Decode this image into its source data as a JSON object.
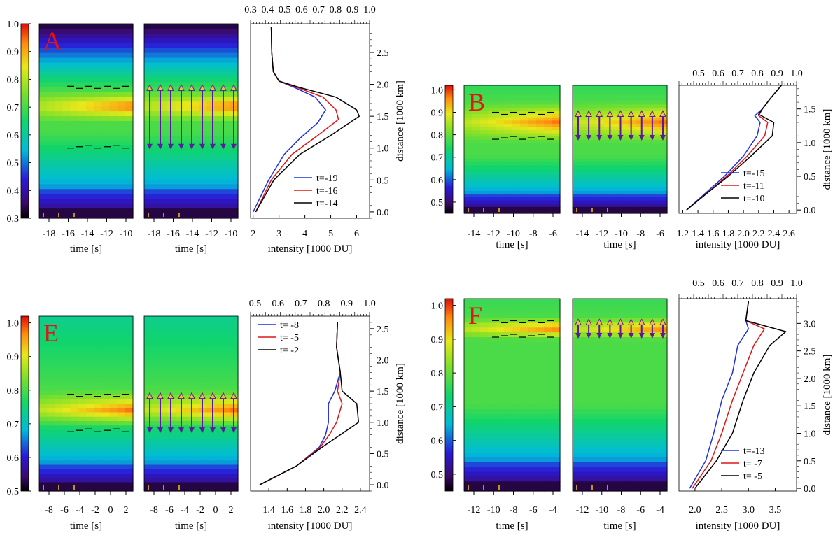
{
  "figure": {
    "common": {
      "time_label": "time [s]",
      "intensity_label": "intensity [1000 DU]",
      "distance_label": "distance [1000 km]"
    },
    "colors": {
      "blue": "#1f2fe0",
      "red": "#e01515",
      "black": "#000000",
      "panel_letter": "#e01515",
      "arrow_up": "#f0c040",
      "arrow_down": "#5a1aa0"
    }
  },
  "chart_data": [
    {
      "panel": "A",
      "type": "line",
      "colorbar_ticks": [
        "1.0",
        "0.9",
        "0.8",
        "0.7",
        "0.6",
        "0.5",
        "0.4",
        "0.3"
      ],
      "colorbar_range": [
        0.3,
        1.0
      ],
      "time_ticks": [
        "-18",
        "-16",
        "-14",
        "-12",
        "-10"
      ],
      "top_axis_ticks": [
        "0.3",
        "0.4",
        "0.5",
        "0.6",
        "0.7",
        "0.8",
        "0.9",
        "1.0"
      ],
      "top_axis_range": [
        0.3,
        1.0
      ],
      "intensity_ticks": [
        "2",
        "3",
        "4",
        "5",
        "6"
      ],
      "intensity_range": [
        1.9,
        6.5
      ],
      "distance_ticks": [
        "0.0",
        "0.5",
        "1.0",
        "1.5",
        "2.0",
        "2.5"
      ],
      "distance_range": [
        -0.1,
        2.95
      ],
      "bright_band_center": 1.65,
      "bright_band_half_width": 0.25,
      "upper_boundary": 1.97,
      "lower_boundary": 1.0,
      "arrow_count": 9,
      "series": [
        {
          "name": "t=-19",
          "color": "#1f2fe0",
          "x": [
            2.7,
            2.72,
            2.78,
            3.0,
            3.6,
            4.4,
            4.8,
            4.5,
            3.8,
            3.2,
            2.6,
            2.0
          ],
          "y": [
            2.9,
            2.5,
            2.2,
            2.05,
            1.95,
            1.8,
            1.6,
            1.4,
            1.15,
            0.9,
            0.5,
            0.0
          ]
        },
        {
          "name": "t=-16",
          "color": "#e01515",
          "x": [
            2.7,
            2.72,
            2.78,
            3.0,
            3.7,
            4.7,
            5.2,
            5.3,
            4.5,
            3.5,
            2.7,
            2.1
          ],
          "y": [
            2.9,
            2.5,
            2.2,
            2.05,
            1.95,
            1.8,
            1.6,
            1.45,
            1.2,
            0.9,
            0.5,
            0.0
          ]
        },
        {
          "name": "t=-14",
          "color": "#000000",
          "x": [
            2.7,
            2.72,
            2.78,
            3.0,
            3.8,
            5.2,
            6.0,
            6.1,
            5.0,
            3.8,
            2.8,
            2.1
          ],
          "y": [
            2.9,
            2.5,
            2.2,
            2.05,
            1.95,
            1.8,
            1.6,
            1.5,
            1.2,
            0.9,
            0.5,
            0.0
          ]
        }
      ]
    },
    {
      "panel": "B",
      "type": "line",
      "colorbar_ticks": [
        "1.0",
        "0.9",
        "0.8",
        "0.7",
        "0.6",
        "0.5"
      ],
      "colorbar_range": [
        0.45,
        1.02
      ],
      "time_ticks": [
        "-14",
        "-12",
        "-10",
        "-8",
        "-6"
      ],
      "top_axis_ticks": [
        "0.5",
        "0.6",
        "0.7",
        "0.8",
        "0.9",
        "1.0"
      ],
      "top_axis_range": [
        0.4,
        1.0
      ],
      "intensity_ticks": [
        "1.2",
        "1.4",
        "1.6",
        "1.8",
        "2.0",
        "2.2",
        "2.4",
        "2.6"
      ],
      "intensity_range": [
        1.15,
        2.7
      ],
      "distance_ticks": [
        "0.0",
        "0.5",
        "1.0",
        "1.5"
      ],
      "distance_range": [
        -0.05,
        1.85
      ],
      "bright_band_center": 1.3,
      "bright_band_half_width": 0.3,
      "upper_boundary": 1.45,
      "lower_boundary": 1.05,
      "arrow_count": 9,
      "series": [
        {
          "name": "t=-15",
          "color": "#1f2fe0",
          "x": [
            2.5,
            2.35,
            2.25,
            2.15,
            2.22,
            2.18,
            2.0,
            1.75,
            1.5,
            1.25
          ],
          "y": [
            1.85,
            1.65,
            1.5,
            1.4,
            1.3,
            1.1,
            0.8,
            0.5,
            0.25,
            0.0
          ]
        },
        {
          "name": "t=-11",
          "color": "#e01515",
          "x": [
            2.5,
            2.35,
            2.25,
            2.2,
            2.32,
            2.28,
            2.05,
            1.78,
            1.52,
            1.25
          ],
          "y": [
            1.85,
            1.65,
            1.5,
            1.4,
            1.3,
            1.1,
            0.8,
            0.5,
            0.25,
            0.0
          ]
        },
        {
          "name": "t=-10",
          "color": "#000000",
          "x": [
            2.5,
            2.35,
            2.25,
            2.2,
            2.4,
            2.38,
            2.1,
            1.8,
            1.52,
            1.25
          ],
          "y": [
            1.85,
            1.65,
            1.5,
            1.42,
            1.3,
            1.1,
            0.8,
            0.5,
            0.25,
            0.0
          ]
        }
      ]
    },
    {
      "panel": "E",
      "type": "line",
      "colorbar_ticks": [
        "1.0",
        "0.9",
        "0.8",
        "0.7",
        "0.6",
        "0.5"
      ],
      "colorbar_range": [
        0.5,
        1.02
      ],
      "time_ticks": [
        "-8",
        "-6",
        "-4",
        "-2",
        "0",
        "2"
      ],
      "top_axis_ticks": [
        "0.5",
        "0.6",
        "0.7",
        "0.8",
        "0.9",
        "1.0"
      ],
      "top_axis_range": [
        0.48,
        1.0
      ],
      "intensity_ticks": [
        "1.4",
        "1.6",
        "1.8",
        "2.0",
        "2.2",
        "2.4"
      ],
      "intensity_range": [
        1.2,
        2.5
      ],
      "distance_ticks": [
        "0.0",
        "0.5",
        "1.0",
        "1.5",
        "2.0",
        "2.5"
      ],
      "distance_range": [
        -0.1,
        2.7
      ],
      "bright_band_center": 1.2,
      "bright_band_half_width": 0.3,
      "upper_boundary": 1.45,
      "lower_boundary": 0.85,
      "arrow_count": 9,
      "series": [
        {
          "name": "t= -8",
          "color": "#1f2fe0",
          "x": [
            2.15,
            2.14,
            2.18,
            2.12,
            2.05,
            2.05,
            2.02,
            1.95,
            1.7,
            1.3
          ],
          "y": [
            2.6,
            2.2,
            1.8,
            1.5,
            1.3,
            1.0,
            0.8,
            0.6,
            0.3,
            0.0
          ]
        },
        {
          "name": "t= -5",
          "color": "#e01515",
          "x": [
            2.15,
            2.14,
            2.18,
            2.15,
            2.2,
            2.14,
            2.06,
            1.96,
            1.7,
            1.3
          ],
          "y": [
            2.6,
            2.2,
            1.8,
            1.5,
            1.3,
            1.0,
            0.8,
            0.6,
            0.3,
            0.0
          ]
        },
        {
          "name": "t= -2",
          "color": "#000000",
          "x": [
            2.15,
            2.14,
            2.18,
            2.2,
            2.36,
            2.38,
            2.18,
            1.98,
            1.7,
            1.3
          ],
          "y": [
            2.6,
            2.2,
            1.8,
            1.5,
            1.3,
            1.0,
            0.8,
            0.6,
            0.3,
            0.0
          ]
        }
      ]
    },
    {
      "panel": "F",
      "type": "line",
      "colorbar_ticks": [
        "1.0",
        "0.9",
        "0.8",
        "0.7",
        "0.6",
        "0.5"
      ],
      "colorbar_range": [
        0.45,
        1.02
      ],
      "time_ticks": [
        "-12",
        "-10",
        "-8",
        "-6",
        "-4"
      ],
      "top_axis_ticks": [
        "0.5",
        "0.6",
        "0.7",
        "0.8",
        "0.9",
        "1.0"
      ],
      "top_axis_range": [
        0.4,
        1.0
      ],
      "intensity_ticks": [
        "2.0",
        "2.5",
        "3.0",
        "3.5"
      ],
      "intensity_range": [
        1.7,
        3.9
      ],
      "distance_ticks": [
        "0.0",
        "0.5",
        "1.0",
        "1.5",
        "2.0",
        "2.5",
        "3.0"
      ],
      "distance_range": [
        -0.05,
        3.45
      ],
      "bright_band_center": 2.9,
      "bright_band_half_width": 0.2,
      "upper_boundary": 3.05,
      "lower_boundary": 2.75,
      "arrow_count": 9,
      "series": [
        {
          "name": "t=-13",
          "color": "#1f2fe0",
          "x": [
            3.0,
            2.95,
            3.0,
            2.8,
            2.7,
            2.5,
            2.35,
            2.2,
            1.9
          ],
          "y": [
            3.4,
            3.05,
            2.9,
            2.6,
            2.1,
            1.6,
            1.0,
            0.5,
            0.0
          ]
        },
        {
          "name": "t= -7",
          "color": "#e01515",
          "x": [
            3.0,
            2.95,
            3.3,
            3.1,
            2.9,
            2.7,
            2.5,
            2.3,
            1.95
          ],
          "y": [
            3.4,
            3.05,
            2.9,
            2.6,
            2.1,
            1.6,
            1.0,
            0.5,
            0.0
          ]
        },
        {
          "name": "t= -5",
          "color": "#000000",
          "x": [
            3.0,
            2.95,
            3.7,
            3.4,
            3.1,
            2.9,
            2.7,
            2.4,
            2.0
          ],
          "y": [
            3.4,
            3.05,
            2.85,
            2.6,
            2.1,
            1.6,
            1.0,
            0.5,
            0.0
          ]
        }
      ]
    }
  ]
}
